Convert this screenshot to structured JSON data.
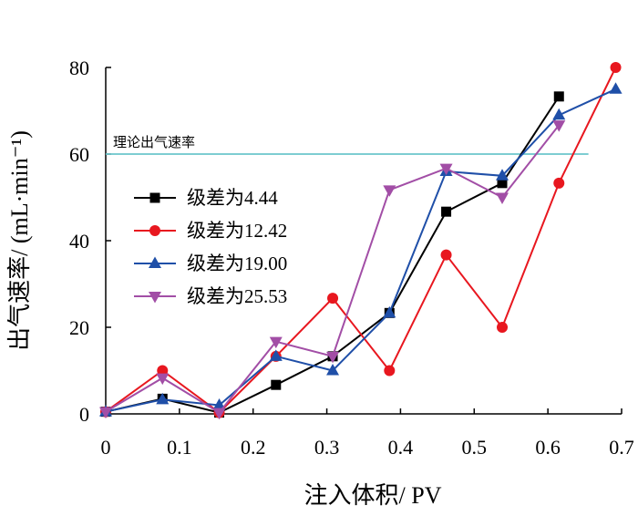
{
  "chart_data": {
    "type": "line",
    "title": "",
    "xlabel": "注入体积/ PV",
    "ylabel": "出气速率/ (mL·min⁻¹)",
    "xlim": [
      0,
      0.7
    ],
    "ylim": [
      0,
      80
    ],
    "x_ticks": [
      "0",
      "0.1",
      "0.2",
      "0.3",
      "0.4",
      "0.5",
      "0.6",
      "0.7"
    ],
    "y_ticks": [
      "0",
      "20",
      "40",
      "60",
      "80"
    ],
    "legend_position": "center-left",
    "reference_line": {
      "label": "理论出气速率",
      "y": 60,
      "x_range": [
        0,
        0.655
      ],
      "color": "#6cc6cc"
    },
    "series": [
      {
        "name": "级差为4.44",
        "color": "#000000",
        "marker": "square",
        "points": [
          [
            0,
            0.5
          ],
          [
            0.077,
            3.5
          ],
          [
            0.154,
            0.3
          ],
          [
            0.231,
            6.7
          ],
          [
            0.308,
            13.3
          ],
          [
            0.385,
            23.3
          ],
          [
            0.462,
            46.7
          ],
          [
            0.538,
            53.3
          ],
          [
            0.615,
            73.3
          ]
        ]
      },
      {
        "name": "级差为12.42",
        "color": "#e8171f",
        "marker": "circle",
        "points": [
          [
            0,
            0.5
          ],
          [
            0.077,
            10
          ],
          [
            0.154,
            0.3
          ],
          [
            0.231,
            13.3
          ],
          [
            0.308,
            26.7
          ],
          [
            0.385,
            10
          ],
          [
            0.462,
            36.7
          ],
          [
            0.538,
            20
          ],
          [
            0.615,
            53.3
          ],
          [
            0.692,
            80
          ]
        ]
      },
      {
        "name": "级差为19.00",
        "color": "#1f4fa8",
        "marker": "triangle-up",
        "points": [
          [
            0,
            0.5
          ],
          [
            0.077,
            3.3
          ],
          [
            0.154,
            2
          ],
          [
            0.231,
            13.3
          ],
          [
            0.308,
            10
          ],
          [
            0.385,
            23.3
          ],
          [
            0.462,
            56
          ],
          [
            0.538,
            55
          ],
          [
            0.615,
            69
          ],
          [
            0.692,
            75
          ]
        ]
      },
      {
        "name": "级差为25.53",
        "color": "#a24ea6",
        "marker": "triangle-down",
        "points": [
          [
            0,
            0.5
          ],
          [
            0.077,
            8.3
          ],
          [
            0.154,
            0.3
          ],
          [
            0.231,
            16.7
          ],
          [
            0.308,
            13.3
          ],
          [
            0.385,
            51.7
          ],
          [
            0.462,
            56.7
          ],
          [
            0.538,
            50
          ],
          [
            0.615,
            66.7
          ]
        ]
      }
    ]
  }
}
